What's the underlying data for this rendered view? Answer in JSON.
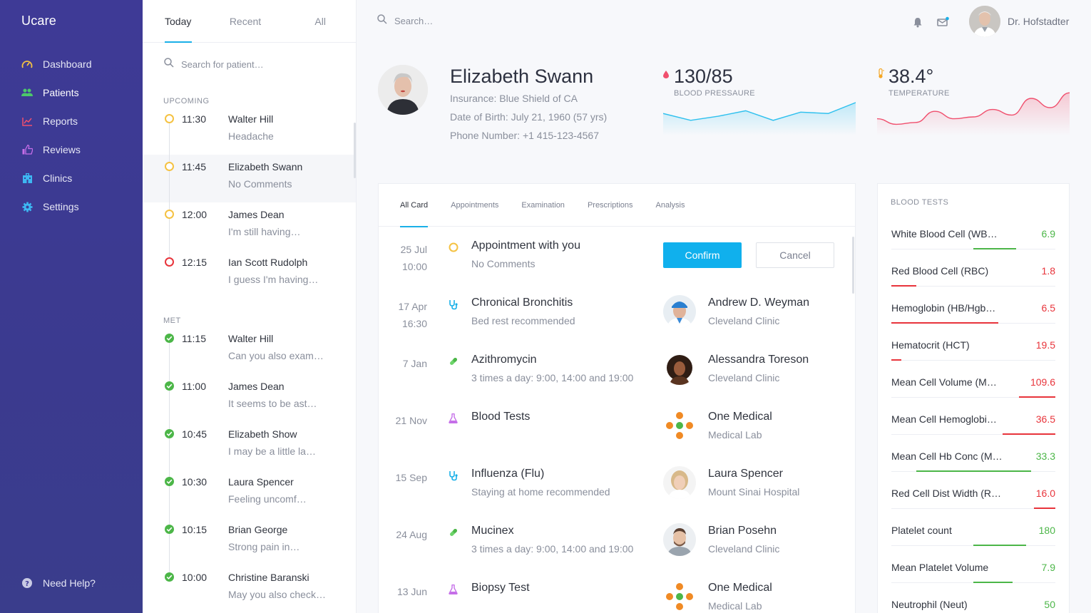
{
  "app": {
    "brand": "Ucare"
  },
  "colors": {
    "accent": "#1ab0e8",
    "confirm": "#10b0ed",
    "good": "#4cb648",
    "bad": "#e8343b",
    "pending": "#f5c242",
    "sidebar": "#3e3a96"
  },
  "sidebar": {
    "items": [
      {
        "label": "Dashboard",
        "icon": "speedometer-icon",
        "color": "#f5c242"
      },
      {
        "label": "Patients",
        "icon": "users-icon",
        "color": "#4cc96a"
      },
      {
        "label": "Reports",
        "icon": "chart-line-icon",
        "color": "#f0506e"
      },
      {
        "label": "Reviews",
        "icon": "thumbs-up-icon",
        "color": "#c56ee8"
      },
      {
        "label": "Clinics",
        "icon": "building-icon",
        "color": "#3db7f2"
      },
      {
        "label": "Settings",
        "icon": "gear-icon",
        "color": "#3db7f2"
      }
    ],
    "help": "Need Help?"
  },
  "patient_list": {
    "tabs": [
      "Today",
      "Recent",
      "All"
    ],
    "search_placeholder": "Search for patient…",
    "upcoming_label": "UPCOMING",
    "met_label": "MET",
    "upcoming": [
      {
        "time": "11:30",
        "name": "Walter Hill",
        "note": "Headache",
        "status": "pending"
      },
      {
        "time": "11:45",
        "name": "Elizabeth Swann",
        "note": "No Comments",
        "status": "pending"
      },
      {
        "time": "12:00",
        "name": "James Dean",
        "note": "I'm still having…",
        "status": "pending"
      },
      {
        "time": "12:15",
        "name": "Ian Scott Rudolph",
        "note": "I guess I'm having…",
        "status": "urgent"
      }
    ],
    "met": [
      {
        "time": "11:15",
        "name": "Walter Hill",
        "note": "Can you also exam…"
      },
      {
        "time": "11:00",
        "name": "James Dean",
        "note": "It seems to be ast…"
      },
      {
        "time": "10:45",
        "name": "Elizabeth Show",
        "note": "I may be a little la…"
      },
      {
        "time": "10:30",
        "name": "Laura Spencer",
        "note": "Feeling uncomf…"
      },
      {
        "time": "10:15",
        "name": "Brian George",
        "note": "Strong pain in…"
      },
      {
        "time": "10:00",
        "name": "Christine Baranski",
        "note": "May you also check…"
      }
    ]
  },
  "topbar": {
    "search_placeholder": "Search…",
    "doctor": "Dr. Hofstadter"
  },
  "patient": {
    "name": "Elizabeth Swann",
    "insurance": "Insurance: Blue Shield of CA",
    "dob": "Date of Birth: July 21, 1960 (57 yrs)",
    "phone": "Phone Number: +1 415-123-4567"
  },
  "vitals": {
    "bp": {
      "value": "130/85",
      "label": "BLOOD PRESSAURE",
      "series": [
        32,
        22,
        28,
        36,
        22,
        34,
        32,
        48
      ]
    },
    "temp": {
      "value": "38.4°",
      "label": "TEMPERATURE",
      "series": [
        18,
        12,
        14,
        26,
        18,
        20,
        28,
        22,
        40,
        30,
        46
      ]
    }
  },
  "card": {
    "tabs": [
      "All Card",
      "Appointments",
      "Examination",
      "Prescriptions",
      "Analysis"
    ],
    "confirm_label": "Confirm",
    "cancel_label": "Cancel",
    "rows": [
      {
        "date": "25 Jul",
        "time": "10:00",
        "icon": "circle-icon",
        "title": "Appointment with you",
        "sub": "No Comments",
        "action": true
      },
      {
        "date": "17 Apr",
        "time": "16:30",
        "icon": "stethoscope-icon",
        "title": "Chronical Bronchitis",
        "sub": "Bed rest recommended",
        "person": "Andrew D. Weyman",
        "place": "Cleveland Clinic",
        "avatar": "doctor"
      },
      {
        "date": "7 Jan",
        "time": "",
        "icon": "pill-icon",
        "title": "Azithromycin",
        "sub": "3 times a day: 9:00, 14:00 and 19:00",
        "person": "Alessandra Toreson",
        "place": "Cleveland Clinic",
        "avatar": "woman"
      },
      {
        "date": "21 Nov",
        "time": "",
        "icon": "flask-icon",
        "title": "Blood Tests",
        "sub": "",
        "person": "One Medical",
        "place": "Medical Lab",
        "avatar": "logo"
      },
      {
        "date": "15 Sep",
        "time": "",
        "icon": "stethoscope-icon",
        "title": "Influenza (Flu)",
        "sub": "Staying at home recommended",
        "person": "Laura Spencer",
        "place": "Mount Sinai Hospital",
        "avatar": "blonde"
      },
      {
        "date": "24 Aug",
        "time": "",
        "icon": "pill-icon",
        "title": "Mucinex",
        "sub": "3 times a day: 9:00, 14:00 and 19:00",
        "person": "Brian Posehn",
        "place": "Cleveland Clinic",
        "avatar": "man"
      },
      {
        "date": "13 Jun",
        "time": "",
        "icon": "flask-icon",
        "title": "Biopsy Test",
        "sub": "",
        "person": "One Medical",
        "place": "Medical Lab",
        "avatar": "logo"
      }
    ]
  },
  "blood_tests": {
    "title": "BLOOD TESTS",
    "rows": [
      {
        "name": "White Blood Cell (WB…",
        "value": "6.9",
        "ok": true,
        "range_start": 0.5,
        "range_end": 0.76
      },
      {
        "name": "Red Blood Cell (RBC)",
        "value": "1.8",
        "ok": false,
        "range_start": 0,
        "range_end": 0.15
      },
      {
        "name": "Hemoglobin (HB/Hgb…",
        "value": "6.5",
        "ok": false,
        "range_start": 0,
        "range_end": 0.65
      },
      {
        "name": "Hematocrit (HCT)",
        "value": "19.5",
        "ok": false,
        "range_start": 0,
        "range_end": 0.06
      },
      {
        "name": "Mean Cell Volume (M…",
        "value": "109.6",
        "ok": false,
        "range_start": 0.78,
        "range_end": 1
      },
      {
        "name": "Mean Cell Hemoglobi…",
        "value": "36.5",
        "ok": false,
        "range_start": 0.68,
        "range_end": 1
      },
      {
        "name": "Mean Cell Hb Conc (M…",
        "value": "33.3",
        "ok": true,
        "range_start": 0.15,
        "range_end": 0.85
      },
      {
        "name": "Red Cell Dist Width (R…",
        "value": "16.0",
        "ok": false,
        "range_start": 0.87,
        "range_end": 1
      },
      {
        "name": "Platelet count",
        "value": "180",
        "ok": true,
        "range_start": 0.5,
        "range_end": 0.82
      },
      {
        "name": "Mean Platelet Volume",
        "value": "7.9",
        "ok": true,
        "range_start": 0.5,
        "range_end": 0.74
      },
      {
        "name": "Neutrophil (Neut)",
        "value": "50",
        "ok": true,
        "range_start": 0.5,
        "range_end": 0.74
      }
    ]
  }
}
